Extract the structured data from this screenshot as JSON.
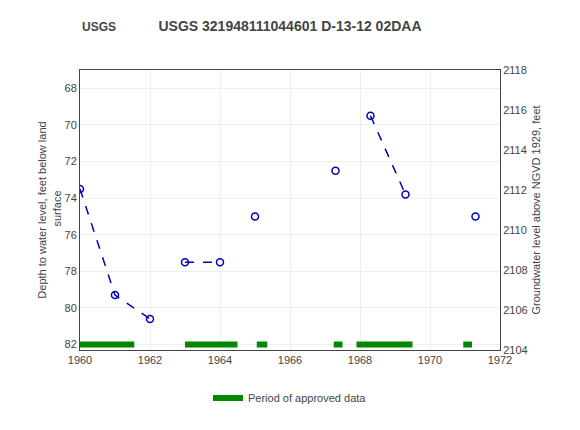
{
  "chart_data": {
    "type": "line",
    "title": "USGS 321948111044601 D-13-12 02DAA",
    "annotations": [
      "USGS"
    ],
    "ylabel": "Depth to water level, feet below land\n surface",
    "y2label": "Groundwater level above NGVD 1929, feet",
    "xlim": [
      1960,
      1972
    ],
    "xticks": [
      1960,
      1962,
      1964,
      1966,
      1968,
      1970,
      1972
    ],
    "ylim": [
      82.3,
      67.0
    ],
    "yticks": [
      68,
      70,
      72,
      74,
      76,
      78,
      80,
      82
    ],
    "y2lim": [
      2104,
      2118
    ],
    "y2ticks": [
      2104,
      2106,
      2108,
      2110,
      2112,
      2114,
      2116,
      2118
    ],
    "grid": true,
    "legend": "bottom",
    "series": [
      {
        "type": "line",
        "color": "#0000bb",
        "marker": "open_circle",
        "line_style": "dashed",
        "x": [
          1960.0,
          1961.0,
          1962.0,
          null,
          1963.0,
          1964.0,
          null,
          1965.0,
          null,
          1967.3,
          null,
          1968.3,
          1969.3,
          null,
          1971.3
        ],
        "values": [
          73.5,
          79.3,
          80.6,
          null,
          77.5,
          77.5,
          null,
          75.0,
          null,
          72.5,
          null,
          69.5,
          73.8,
          null,
          75.0
        ]
      },
      {
        "type": "bar",
        "orientation": "horizontal",
        "name": "Period of approved data",
        "color": "#008800",
        "y": 82.0,
        "periods": [
          [
            1960.0,
            1961.55
          ],
          [
            1963.0,
            1964.5
          ],
          [
            1965.05,
            1965.35
          ],
          [
            1967.25,
            1967.5
          ],
          [
            1967.9,
            1969.5
          ],
          [
            1970.95,
            1971.2
          ]
        ]
      }
    ]
  }
}
